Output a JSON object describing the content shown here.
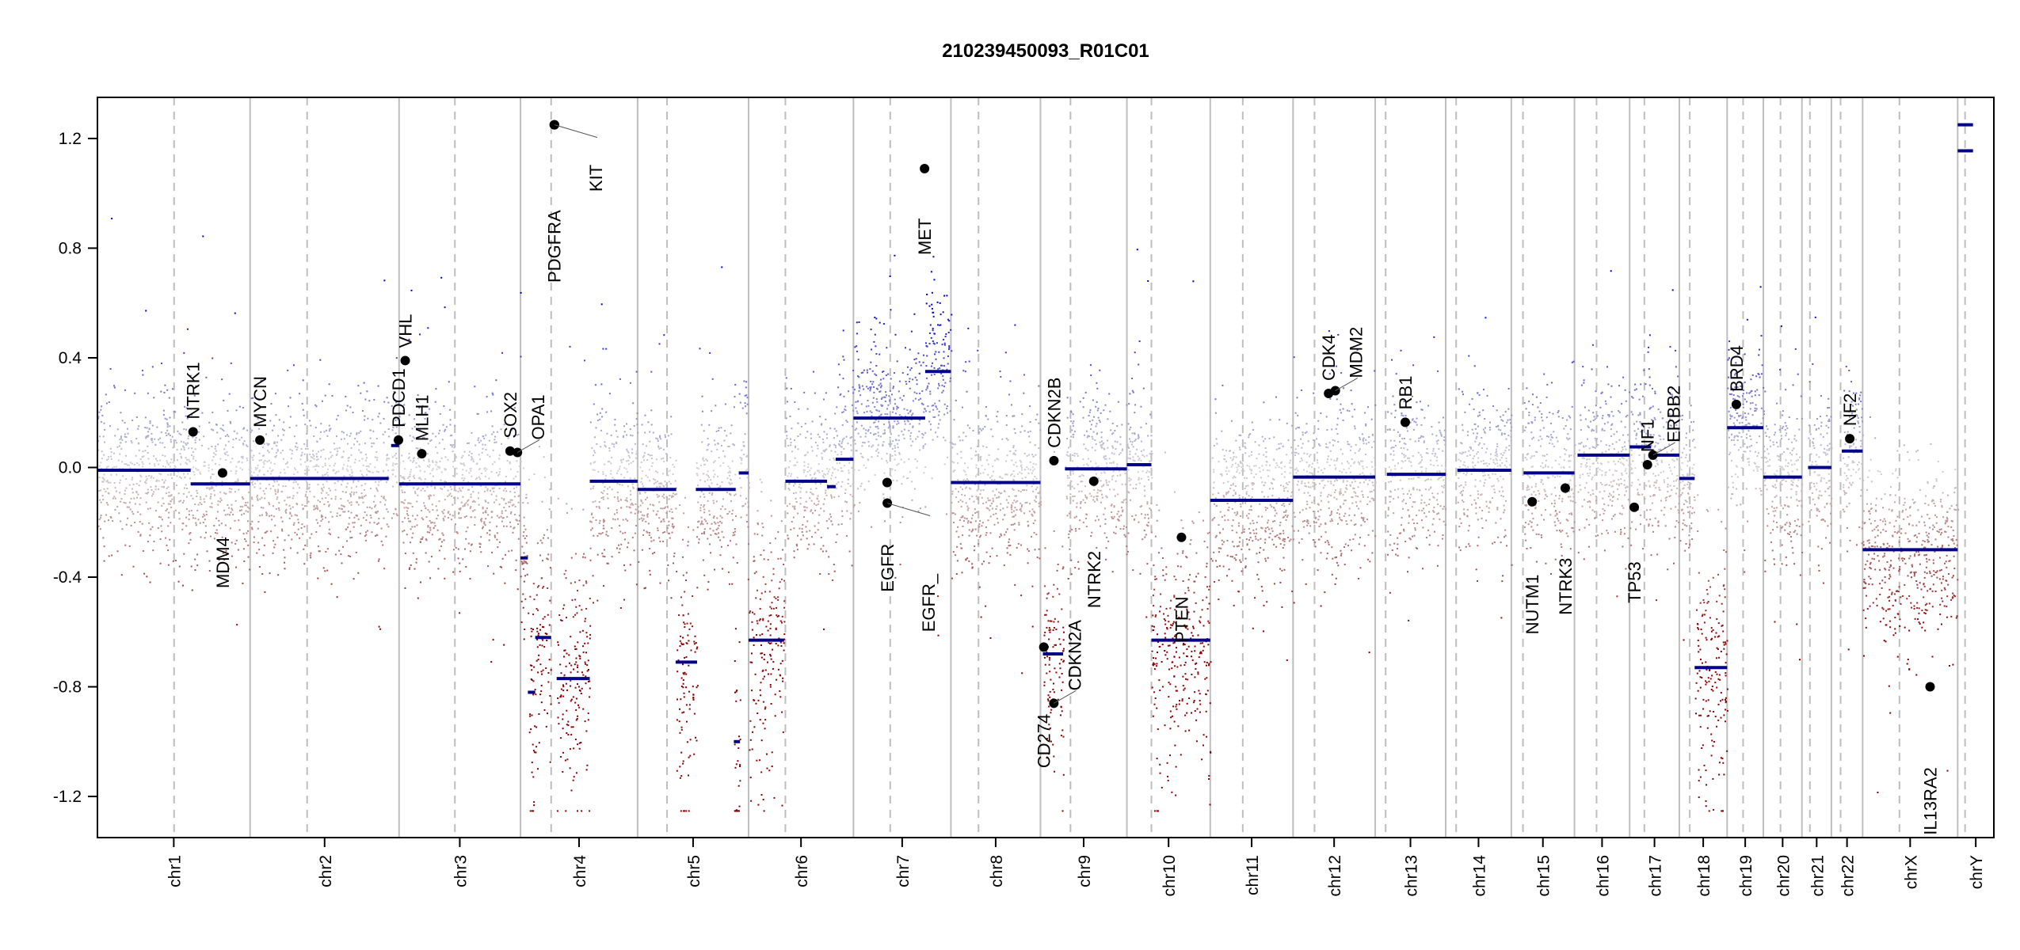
{
  "chart_data": {
    "type": "scatter",
    "title": "210239450093_R01C01",
    "xlabel": "",
    "ylabel": "",
    "ylim": [
      -1.35,
      1.35
    ],
    "yticks": [
      -1.2,
      -0.8,
      -0.4,
      0.0,
      0.4,
      0.8,
      1.2
    ],
    "ytick_labels": [
      "-1.2",
      "-0.8",
      "-0.4",
      "0.0",
      "0.4",
      "0.8",
      "1.2"
    ],
    "grid": false,
    "colors": {
      "segment": "#00008b",
      "loss": "#8b0000",
      "neutral": "#d3d3d3",
      "gain": "#0000cd",
      "gene_point": "#000000",
      "chrom_line": "#bebebe"
    },
    "chromosomes": [
      {
        "name": "chr1",
        "length": 249,
        "centromere": 125
      },
      {
        "name": "chr2",
        "length": 243,
        "centromere": 93
      },
      {
        "name": "chr3",
        "length": 198,
        "centromere": 91
      },
      {
        "name": "chr4",
        "length": 191,
        "centromere": 50
      },
      {
        "name": "chr5",
        "length": 181,
        "centromere": 48
      },
      {
        "name": "chr6",
        "length": 171,
        "centromere": 60
      },
      {
        "name": "chr7",
        "length": 159,
        "centromere": 60
      },
      {
        "name": "chr8",
        "length": 146,
        "centromere": 45
      },
      {
        "name": "chr9",
        "length": 141,
        "centromere": 49
      },
      {
        "name": "chr10",
        "length": 136,
        "centromere": 40
      },
      {
        "name": "chr11",
        "length": 135,
        "centromere": 53
      },
      {
        "name": "chr12",
        "length": 134,
        "centromere": 35
      },
      {
        "name": "chr13",
        "length": 115,
        "centromere": 17
      },
      {
        "name": "chr14",
        "length": 107,
        "centromere": 17
      },
      {
        "name": "chr15",
        "length": 103,
        "centromere": 19
      },
      {
        "name": "chr16",
        "length": 90,
        "centromere": 36
      },
      {
        "name": "chr17",
        "length": 81,
        "centromere": 24
      },
      {
        "name": "chr18",
        "length": 78,
        "centromere": 17
      },
      {
        "name": "chr19",
        "length": 59,
        "centromere": 26
      },
      {
        "name": "chr20",
        "length": 63,
        "centromere": 28
      },
      {
        "name": "chr21",
        "length": 48,
        "centromere": 13
      },
      {
        "name": "chr22",
        "length": 51,
        "centromere": 15
      },
      {
        "name": "chrX",
        "length": 155,
        "centromere": 60
      },
      {
        "name": "chrY",
        "length": 59,
        "centromere": 12
      }
    ],
    "segments": [
      [
        "chr1",
        0,
        152,
        -0.01
      ],
      [
        "chr1",
        152,
        249,
        -0.06
      ],
      [
        "chr2",
        0,
        226,
        -0.04
      ],
      [
        "chr2",
        230,
        243,
        0.08
      ],
      [
        "chr3",
        0,
        198,
        -0.06
      ],
      [
        "chr4",
        0,
        12,
        -0.33
      ],
      [
        "chr4",
        12,
        24,
        -0.82
      ],
      [
        "chr4",
        24,
        50,
        -0.62
      ],
      [
        "chr4",
        59,
        113,
        -0.77
      ],
      [
        "chr4",
        113,
        191,
        -0.05
      ],
      [
        "chr5",
        0,
        63,
        -0.08
      ],
      [
        "chr5",
        62,
        97,
        -0.71
      ],
      [
        "chr5",
        95,
        160,
        -0.08
      ],
      [
        "chr5",
        157,
        167,
        -1.0
      ],
      [
        "chr5",
        165,
        181,
        -0.02
      ],
      [
        "chr6",
        0,
        58,
        -0.63
      ],
      [
        "chr6",
        60,
        128,
        -0.05
      ],
      [
        "chr6",
        128,
        142,
        -0.07
      ],
      [
        "chr6",
        142,
        171,
        0.03
      ],
      [
        "chr7",
        0,
        117,
        0.18
      ],
      [
        "chr7",
        117,
        159,
        0.35
      ],
      [
        "chr8",
        0,
        146,
        -0.055
      ],
      [
        "chr9",
        4,
        37,
        -0.68
      ],
      [
        "chr9",
        40,
        141,
        -0.005
      ],
      [
        "chr10",
        0,
        40,
        0.01
      ],
      [
        "chr10",
        40,
        136,
        -0.63
      ],
      [
        "chr11",
        0,
        135,
        -0.12
      ],
      [
        "chr12",
        0,
        134,
        -0.035
      ],
      [
        "chr13",
        19,
        115,
        -0.025
      ],
      [
        "chr14",
        19,
        107,
        -0.01
      ],
      [
        "chr15",
        20,
        103,
        -0.02
      ],
      [
        "chr16",
        5,
        90,
        0.045
      ],
      [
        "chr17",
        0,
        35,
        0.075
      ],
      [
        "chr17",
        35,
        81,
        0.045
      ],
      [
        "chr18",
        0,
        25,
        -0.04
      ],
      [
        "chr18",
        25,
        78,
        -0.73
      ],
      [
        "chr19",
        0,
        59,
        0.145
      ],
      [
        "chr20",
        0,
        63,
        -0.035
      ],
      [
        "chr21",
        10,
        48,
        0.0
      ],
      [
        "chr22",
        17,
        51,
        0.06
      ],
      [
        "chrX",
        0,
        155,
        -0.3
      ],
      [
        "chrY",
        0,
        25,
        1.25
      ],
      [
        "chrY",
        0,
        25,
        1.155
      ]
    ],
    "genes": [
      {
        "name": "NTRK1",
        "chr": "chr1",
        "pos": 156,
        "value": 0.13,
        "side": "above"
      },
      {
        "name": "MDM4",
        "chr": "chr1",
        "pos": 204,
        "value": -0.02,
        "side": "below"
      },
      {
        "name": "MYCN",
        "chr": "chr2",
        "pos": 16,
        "value": 0.1,
        "side": "above"
      },
      {
        "name": "PDCD1",
        "chr": "chr2",
        "pos": 242,
        "value": 0.1,
        "side": "above"
      },
      {
        "name": "VHL",
        "chr": "chr3",
        "pos": 10,
        "value": 0.39,
        "side": "above"
      },
      {
        "name": "MLH1",
        "chr": "chr3",
        "pos": 37,
        "value": 0.05,
        "side": "above"
      },
      {
        "name": "SOX2",
        "chr": "chr3",
        "pos": 181,
        "value": 0.06,
        "side": "above"
      },
      {
        "name": "OPA1",
        "chr": "chr3",
        "pos": 193,
        "value": 0.055,
        "side": "above"
      },
      {
        "name": "PDGFRA",
        "chr": "chr4",
        "pos": 55,
        "value": 1.25,
        "side": "below"
      },
      {
        "name": "KIT",
        "chr": "chr4",
        "pos": 55.5,
        "value": 1.25,
        "side": "below"
      },
      {
        "name": "EGFR",
        "chr": "chr7",
        "pos": 55,
        "value": -0.055,
        "side": "below"
      },
      {
        "name": "EGFR_",
        "chr": "chr7",
        "pos": 55.2,
        "value": -0.13,
        "side": "below"
      },
      {
        "name": "MET",
        "chr": "chr7",
        "pos": 116,
        "value": 1.09,
        "side": "below"
      },
      {
        "name": "CD274",
        "chr": "chr9",
        "pos": 5.5,
        "value": -0.655,
        "side": "below"
      },
      {
        "name": "CDKN2A",
        "chr": "chr9",
        "pos": 21.9,
        "value": -0.86,
        "side": "above"
      },
      {
        "name": "CDKN2B",
        "chr": "chr9",
        "pos": 22,
        "value": 0.025,
        "side": "above"
      },
      {
        "name": "NTRK2",
        "chr": "chr9",
        "pos": 87,
        "value": -0.05,
        "side": "below"
      },
      {
        "name": "PTEN",
        "chr": "chr10",
        "pos": 89,
        "value": -0.255,
        "side": "below"
      },
      {
        "name": "CDK4",
        "chr": "chr12",
        "pos": 58,
        "value": 0.27,
        "side": "above"
      },
      {
        "name": "MDM2",
        "chr": "chr12",
        "pos": 69,
        "value": 0.28,
        "side": "above"
      },
      {
        "name": "RB1",
        "chr": "chr13",
        "pos": 49,
        "value": 0.165,
        "side": "above"
      },
      {
        "name": "NUTM1",
        "chr": "chr15",
        "pos": 34,
        "value": -0.125,
        "side": "below"
      },
      {
        "name": "NTRK3",
        "chr": "chr15",
        "pos": 88,
        "value": -0.075,
        "side": "below"
      },
      {
        "name": "TP53",
        "chr": "chr17",
        "pos": 7.5,
        "value": -0.145,
        "side": "below"
      },
      {
        "name": "NF1",
        "chr": "chr17",
        "pos": 29,
        "value": 0.01,
        "side": "above"
      },
      {
        "name": "ERBB2",
        "chr": "chr17",
        "pos": 38,
        "value": 0.045,
        "side": "above"
      },
      {
        "name": "BRD4",
        "chr": "chr19",
        "pos": 15,
        "value": 0.23,
        "side": "above"
      },
      {
        "name": "NF2",
        "chr": "chr22",
        "pos": 30,
        "value": 0.105,
        "side": "above"
      },
      {
        "name": "IL13RA2",
        "chr": "chrX",
        "pos": 110,
        "value": -0.8,
        "side": "below"
      }
    ]
  }
}
